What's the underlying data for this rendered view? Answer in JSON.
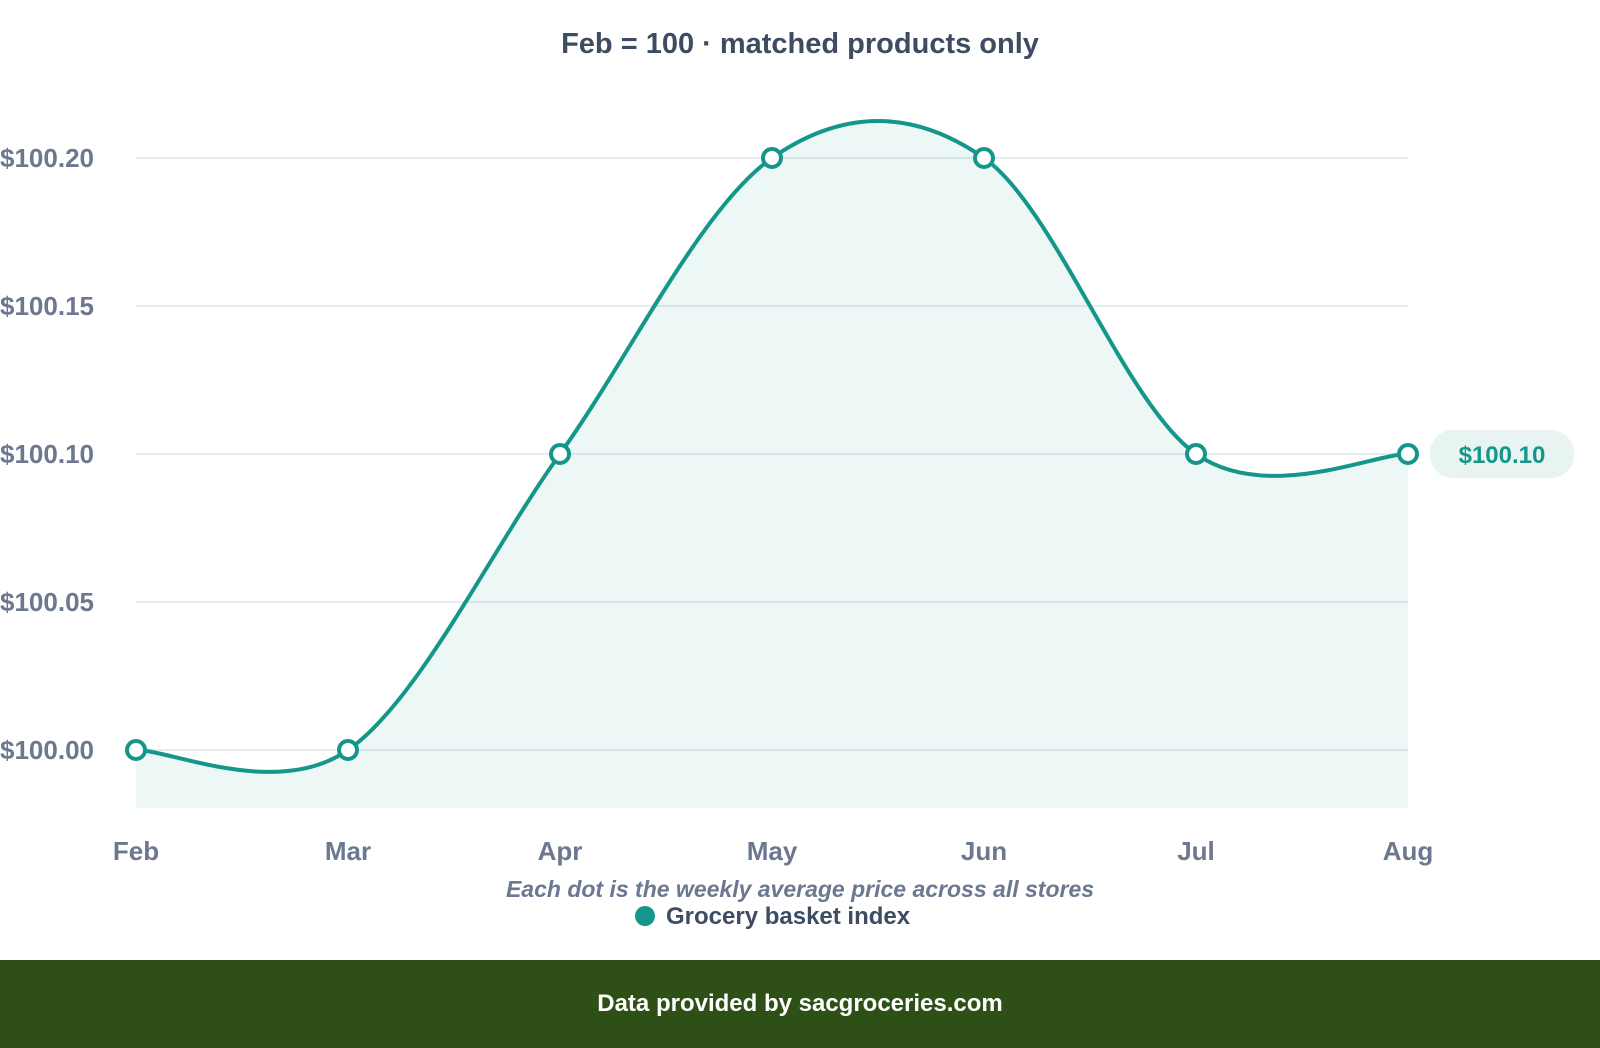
{
  "chart_data": {
    "type": "area",
    "title": "Feb = 100 · matched products only",
    "subtitle": "Each dot is the weekly average price across all stores",
    "xlabel": "",
    "ylabel": "",
    "categories": [
      "Feb",
      "Mar",
      "Apr",
      "May",
      "Jun",
      "Jul",
      "Aug"
    ],
    "series": [
      {
        "name": "Grocery basket index",
        "values": [
          100.0,
          100.0,
          100.1,
          100.2,
          100.2,
          100.1,
          100.1
        ],
        "color": "#14968a"
      }
    ],
    "ylim": [
      99.98,
      100.225
    ],
    "yticks": [
      100.0,
      100.05,
      100.1,
      100.15,
      100.2
    ],
    "ytick_labels": [
      "$100.00",
      "$100.05",
      "$100.10",
      "$100.15",
      "$100.20"
    ],
    "end_label": "$100.10",
    "grid": true,
    "legend_position": "bottom-center"
  },
  "footer": {
    "text": "Data provided by sacgroceries.com",
    "background": "#2e5016"
  }
}
